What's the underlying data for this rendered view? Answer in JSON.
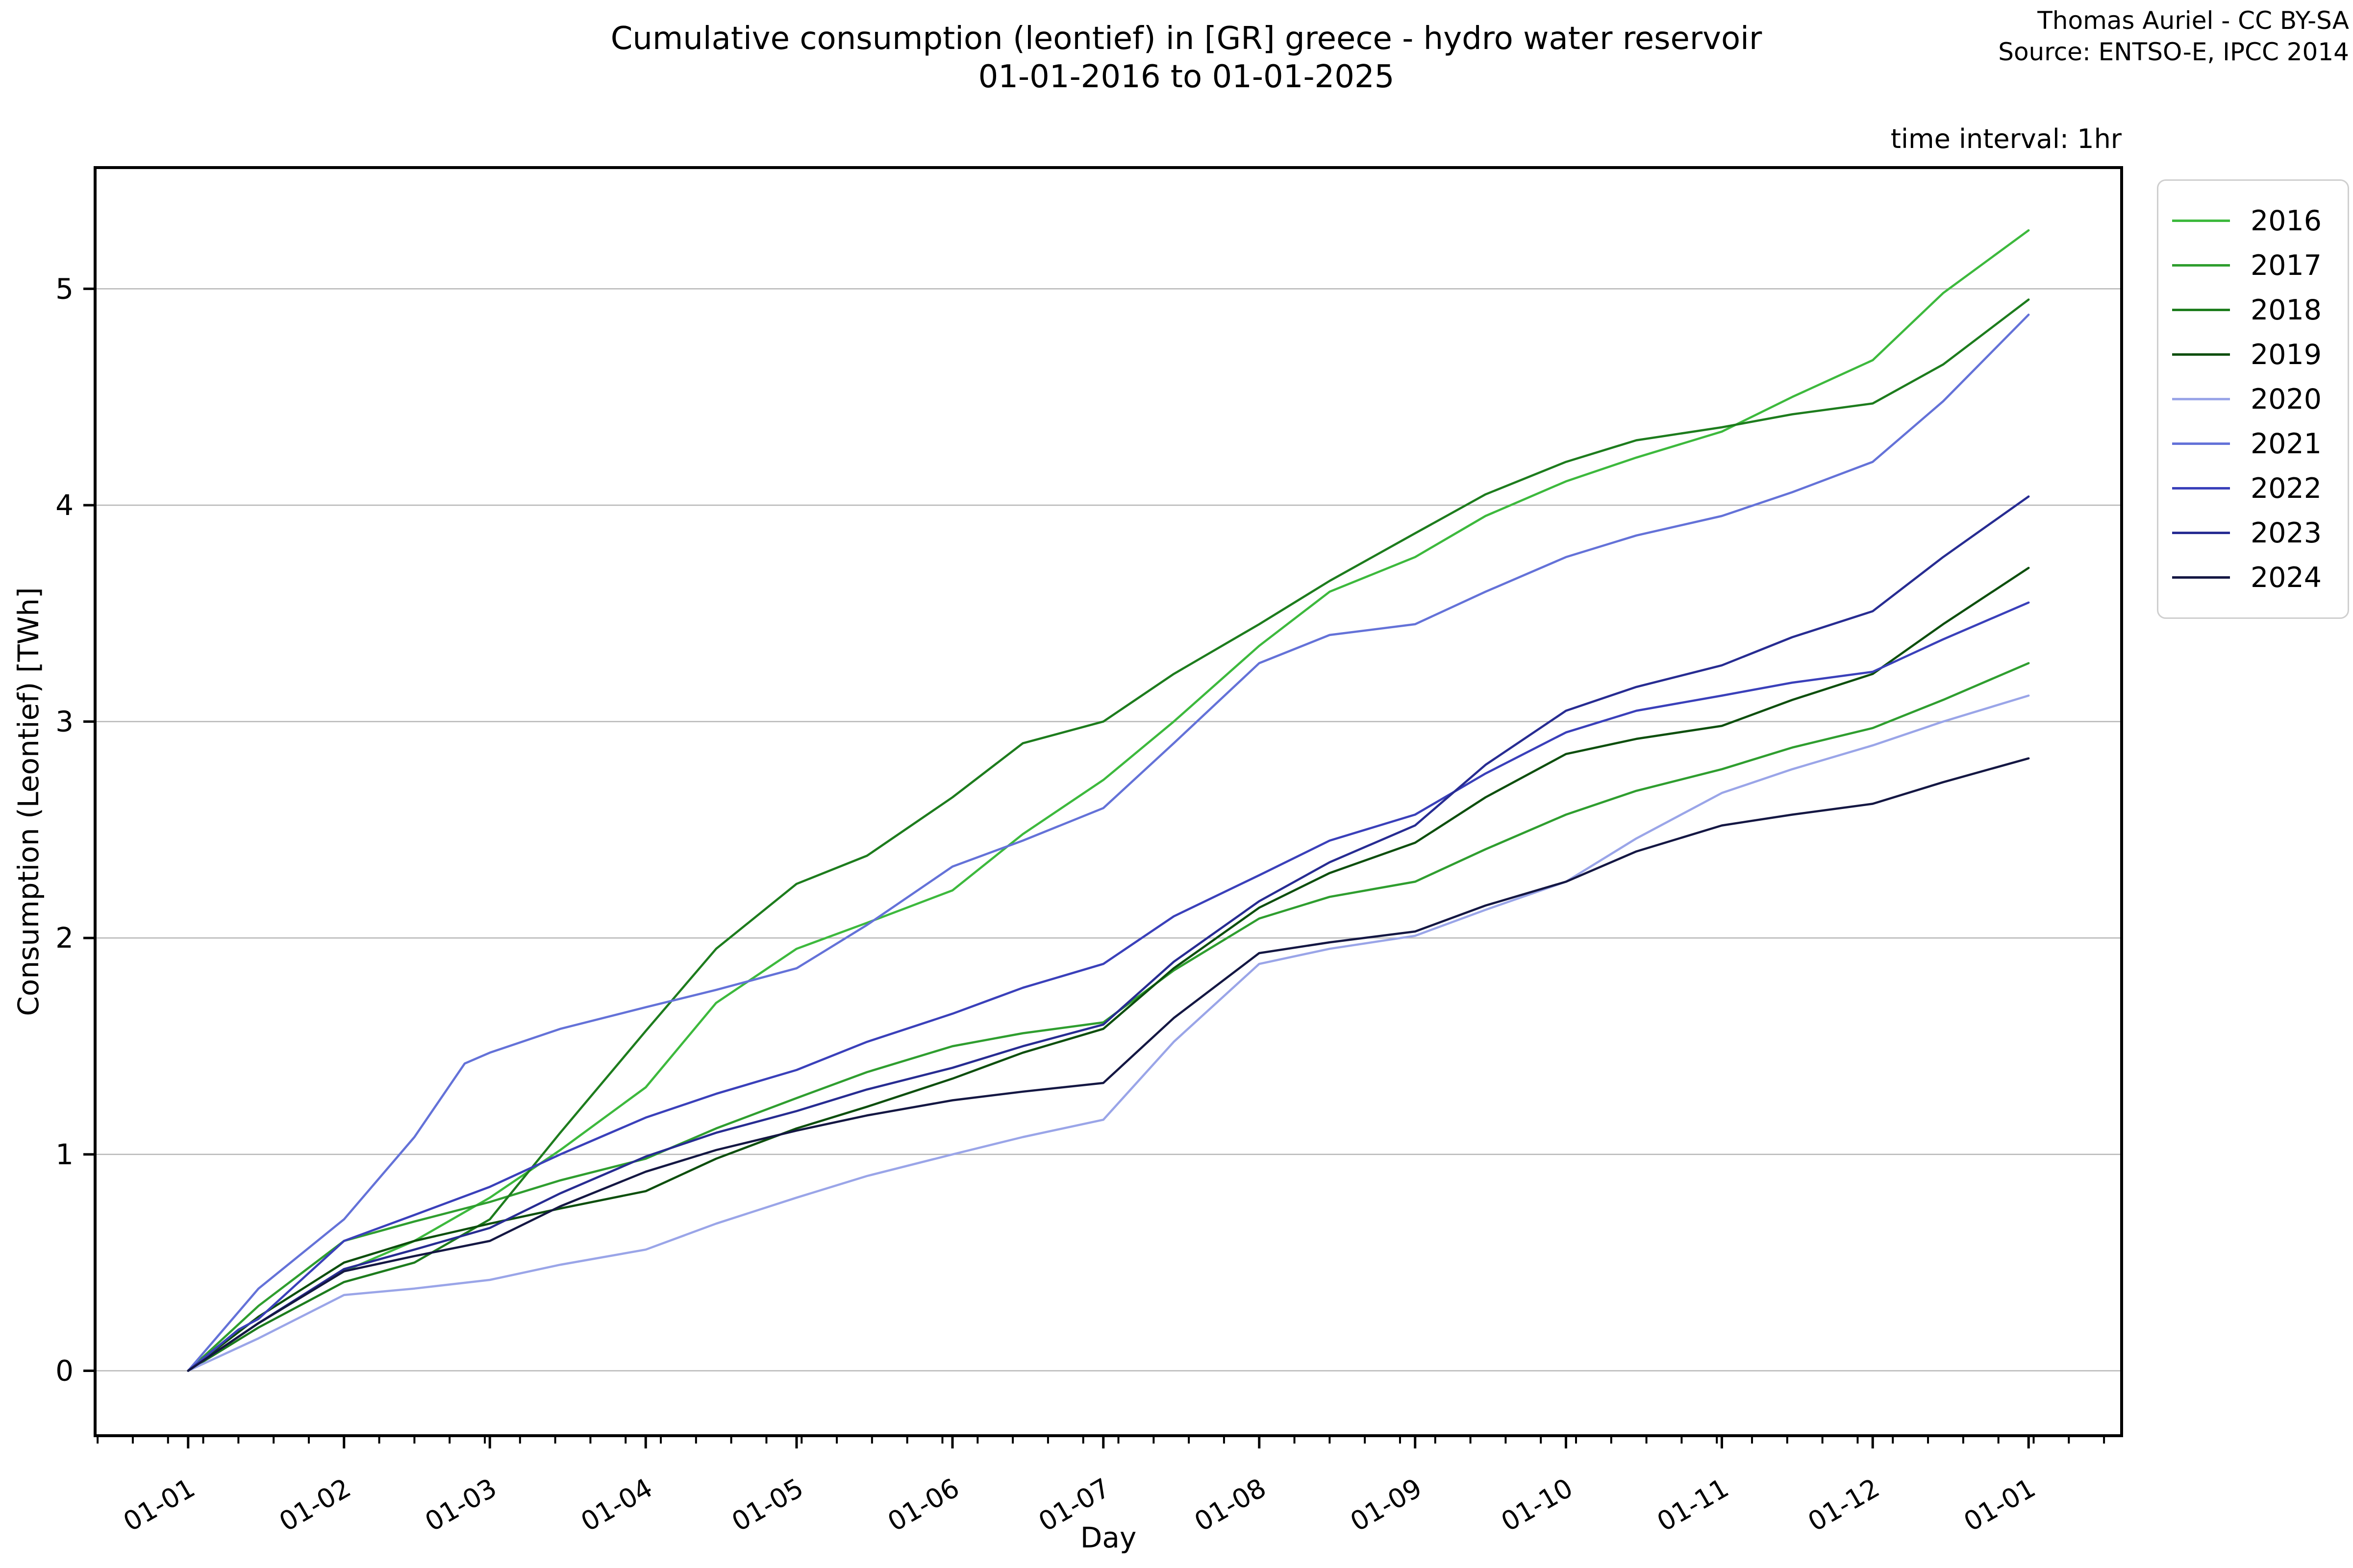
{
  "header": {
    "title_line1": "Cumulative consumption (leontief) in [GR] greece - hydro water reservoir",
    "title_line2": "01-01-2016 to 01-01-2025",
    "credit_line1": "Thomas Auriel - CC BY-SA",
    "credit_line2": "Source: ENTSO-E, IPCC 2014",
    "time_interval_note": "time interval: 1hr"
  },
  "chart_data": {
    "type": "line",
    "title": "Cumulative consumption (leontief) in [GR] greece - hydro water reservoir 01-01-2016 to 01-01-2025",
    "xlabel": "Day",
    "ylabel": "Consumption (Leontief) [TWh]",
    "grid": {
      "horizontal": true,
      "color": "#b8b8b8"
    },
    "legend_position": "outside-right",
    "x_axis": {
      "unit": "day of year (month-start ticks, labels day-month)",
      "xlim_days": [
        -18.5,
        384.5
      ],
      "major_ticks": [
        {
          "day": 0,
          "label": "01-01"
        },
        {
          "day": 31,
          "label": "01-02"
        },
        {
          "day": 60,
          "label": "01-03"
        },
        {
          "day": 91,
          "label": "01-04"
        },
        {
          "day": 121,
          "label": "01-05"
        },
        {
          "day": 152,
          "label": "01-06"
        },
        {
          "day": 182,
          "label": "01-07"
        },
        {
          "day": 213,
          "label": "01-08"
        },
        {
          "day": 244,
          "label": "01-09"
        },
        {
          "day": 274,
          "label": "01-10"
        },
        {
          "day": 305,
          "label": "01-11"
        },
        {
          "day": 335,
          "label": "01-12"
        },
        {
          "day": 366,
          "label": "01-01"
        }
      ],
      "minor_tick_start_day": -18,
      "minor_tick_interval_days": 7,
      "minor_tick_end_day": 381
    },
    "y_axis": {
      "ticks": [
        0,
        1,
        2,
        3,
        4,
        5
      ],
      "ylim": [
        -0.3,
        5.56
      ],
      "unit": "TWh"
    },
    "series": [
      {
        "name": "2016",
        "color": "#3db93d",
        "points": [
          [
            0,
            0
          ],
          [
            14,
            0.22
          ],
          [
            31,
            0.46
          ],
          [
            45,
            0.6
          ],
          [
            60,
            0.8
          ],
          [
            74,
            1.02
          ],
          [
            91,
            1.31
          ],
          [
            105,
            1.7
          ],
          [
            121,
            1.95
          ],
          [
            135,
            2.07
          ],
          [
            152,
            2.22
          ],
          [
            166,
            2.48
          ],
          [
            182,
            2.73
          ],
          [
            196,
            3.0
          ],
          [
            213,
            3.35
          ],
          [
            227,
            3.6
          ],
          [
            244,
            3.76
          ],
          [
            258,
            3.95
          ],
          [
            274,
            4.11
          ],
          [
            288,
            4.22
          ],
          [
            305,
            4.34
          ],
          [
            319,
            4.5
          ],
          [
            335,
            4.67
          ],
          [
            349,
            4.98
          ],
          [
            366,
            5.27
          ]
        ]
      },
      {
        "name": "2017",
        "color": "#2f9e2f",
        "points": [
          [
            0,
            0
          ],
          [
            14,
            0.3
          ],
          [
            31,
            0.6
          ],
          [
            45,
            0.69
          ],
          [
            60,
            0.78
          ],
          [
            74,
            0.88
          ],
          [
            91,
            0.98
          ],
          [
            105,
            1.12
          ],
          [
            121,
            1.26
          ],
          [
            135,
            1.38
          ],
          [
            152,
            1.5
          ],
          [
            166,
            1.56
          ],
          [
            182,
            1.61
          ],
          [
            196,
            1.85
          ],
          [
            213,
            2.09
          ],
          [
            227,
            2.19
          ],
          [
            244,
            2.26
          ],
          [
            258,
            2.41
          ],
          [
            274,
            2.57
          ],
          [
            288,
            2.68
          ],
          [
            305,
            2.78
          ],
          [
            319,
            2.88
          ],
          [
            335,
            2.97
          ],
          [
            349,
            3.1
          ],
          [
            366,
            3.27
          ]
        ]
      },
      {
        "name": "2018",
        "color": "#1d7c1d",
        "points": [
          [
            0,
            0
          ],
          [
            14,
            0.2
          ],
          [
            31,
            0.41
          ],
          [
            45,
            0.5
          ],
          [
            60,
            0.7
          ],
          [
            74,
            1.1
          ],
          [
            91,
            1.57
          ],
          [
            105,
            1.95
          ],
          [
            121,
            2.25
          ],
          [
            135,
            2.38
          ],
          [
            152,
            2.65
          ],
          [
            166,
            2.9
          ],
          [
            182,
            3.0
          ],
          [
            196,
            3.22
          ],
          [
            213,
            3.45
          ],
          [
            227,
            3.65
          ],
          [
            244,
            3.87
          ],
          [
            258,
            4.05
          ],
          [
            274,
            4.2
          ],
          [
            288,
            4.3
          ],
          [
            305,
            4.36
          ],
          [
            319,
            4.42
          ],
          [
            335,
            4.47
          ],
          [
            349,
            4.65
          ],
          [
            366,
            4.95
          ]
        ]
      },
      {
        "name": "2019",
        "color": "#0d4f0d",
        "points": [
          [
            0,
            0
          ],
          [
            14,
            0.25
          ],
          [
            31,
            0.5
          ],
          [
            45,
            0.6
          ],
          [
            60,
            0.68
          ],
          [
            74,
            0.75
          ],
          [
            91,
            0.83
          ],
          [
            105,
            0.98
          ],
          [
            121,
            1.12
          ],
          [
            135,
            1.22
          ],
          [
            152,
            1.35
          ],
          [
            166,
            1.47
          ],
          [
            182,
            1.58
          ],
          [
            196,
            1.86
          ],
          [
            213,
            2.14
          ],
          [
            227,
            2.3
          ],
          [
            244,
            2.44
          ],
          [
            258,
            2.65
          ],
          [
            274,
            2.85
          ],
          [
            288,
            2.92
          ],
          [
            305,
            2.98
          ],
          [
            319,
            3.1
          ],
          [
            335,
            3.22
          ],
          [
            349,
            3.45
          ],
          [
            366,
            3.71
          ]
        ]
      },
      {
        "name": "2020",
        "color": "#9aa5e8",
        "points": [
          [
            0,
            0
          ],
          [
            14,
            0.15
          ],
          [
            31,
            0.35
          ],
          [
            45,
            0.38
          ],
          [
            60,
            0.42
          ],
          [
            74,
            0.49
          ],
          [
            91,
            0.56
          ],
          [
            105,
            0.68
          ],
          [
            121,
            0.8
          ],
          [
            135,
            0.9
          ],
          [
            152,
            1.0
          ],
          [
            166,
            1.08
          ],
          [
            182,
            1.16
          ],
          [
            196,
            1.52
          ],
          [
            213,
            1.88
          ],
          [
            227,
            1.95
          ],
          [
            244,
            2.01
          ],
          [
            258,
            2.13
          ],
          [
            274,
            2.26
          ],
          [
            288,
            2.46
          ],
          [
            305,
            2.67
          ],
          [
            319,
            2.78
          ],
          [
            335,
            2.89
          ],
          [
            349,
            3.0
          ],
          [
            366,
            3.12
          ]
        ]
      },
      {
        "name": "2021",
        "color": "#6472d8",
        "points": [
          [
            0,
            0
          ],
          [
            14,
            0.38
          ],
          [
            31,
            0.7
          ],
          [
            45,
            1.08
          ],
          [
            55,
            1.42
          ],
          [
            60,
            1.47
          ],
          [
            74,
            1.58
          ],
          [
            91,
            1.68
          ],
          [
            105,
            1.76
          ],
          [
            121,
            1.86
          ],
          [
            135,
            2.06
          ],
          [
            152,
            2.33
          ],
          [
            166,
            2.45
          ],
          [
            182,
            2.6
          ],
          [
            196,
            2.9
          ],
          [
            213,
            3.27
          ],
          [
            227,
            3.4
          ],
          [
            244,
            3.45
          ],
          [
            258,
            3.6
          ],
          [
            274,
            3.76
          ],
          [
            288,
            3.86
          ],
          [
            305,
            3.95
          ],
          [
            319,
            4.06
          ],
          [
            335,
            4.2
          ],
          [
            349,
            4.48
          ],
          [
            366,
            4.88
          ]
        ]
      },
      {
        "name": "2022",
        "color": "#3a40ba",
        "points": [
          [
            0,
            0
          ],
          [
            10,
            0.19
          ],
          [
            14,
            0.24
          ],
          [
            31,
            0.6
          ],
          [
            45,
            0.72
          ],
          [
            60,
            0.85
          ],
          [
            74,
            1.0
          ],
          [
            91,
            1.17
          ],
          [
            105,
            1.28
          ],
          [
            121,
            1.39
          ],
          [
            135,
            1.52
          ],
          [
            152,
            1.65
          ],
          [
            166,
            1.77
          ],
          [
            182,
            1.88
          ],
          [
            196,
            2.1
          ],
          [
            213,
            2.29
          ],
          [
            227,
            2.45
          ],
          [
            244,
            2.57
          ],
          [
            258,
            2.76
          ],
          [
            274,
            2.95
          ],
          [
            288,
            3.05
          ],
          [
            305,
            3.12
          ],
          [
            319,
            3.18
          ],
          [
            335,
            3.23
          ],
          [
            349,
            3.38
          ],
          [
            366,
            3.55
          ]
        ]
      },
      {
        "name": "2023",
        "color": "#272c92",
        "points": [
          [
            0,
            0
          ],
          [
            14,
            0.22
          ],
          [
            31,
            0.47
          ],
          [
            45,
            0.56
          ],
          [
            60,
            0.66
          ],
          [
            74,
            0.82
          ],
          [
            91,
            0.99
          ],
          [
            105,
            1.1
          ],
          [
            121,
            1.2
          ],
          [
            135,
            1.3
          ],
          [
            152,
            1.4
          ],
          [
            166,
            1.5
          ],
          [
            182,
            1.6
          ],
          [
            196,
            1.89
          ],
          [
            213,
            2.17
          ],
          [
            227,
            2.35
          ],
          [
            244,
            2.52
          ],
          [
            258,
            2.8
          ],
          [
            274,
            3.05
          ],
          [
            288,
            3.16
          ],
          [
            305,
            3.26
          ],
          [
            319,
            3.39
          ],
          [
            335,
            3.51
          ],
          [
            349,
            3.76
          ],
          [
            366,
            4.04
          ]
        ]
      },
      {
        "name": "2024",
        "color": "#141743",
        "points": [
          [
            0,
            0
          ],
          [
            14,
            0.22
          ],
          [
            31,
            0.46
          ],
          [
            45,
            0.53
          ],
          [
            60,
            0.6
          ],
          [
            74,
            0.76
          ],
          [
            91,
            0.92
          ],
          [
            105,
            1.02
          ],
          [
            121,
            1.11
          ],
          [
            135,
            1.18
          ],
          [
            152,
            1.25
          ],
          [
            166,
            1.29
          ],
          [
            182,
            1.33
          ],
          [
            196,
            1.63
          ],
          [
            213,
            1.93
          ],
          [
            227,
            1.98
          ],
          [
            244,
            2.03
          ],
          [
            258,
            2.15
          ],
          [
            274,
            2.26
          ],
          [
            288,
            2.4
          ],
          [
            305,
            2.52
          ],
          [
            319,
            2.57
          ],
          [
            335,
            2.62
          ],
          [
            349,
            2.72
          ],
          [
            366,
            2.83
          ]
        ]
      }
    ]
  }
}
